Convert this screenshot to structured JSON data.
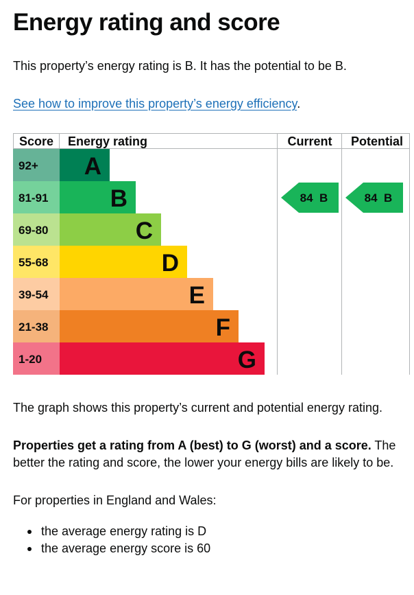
{
  "title": "Energy rating and score",
  "intro": "This property’s energy rating is B. It has the potential to be B.",
  "improve_link": {
    "text": "See how to improve this property’s energy efficiency",
    "suffix": "."
  },
  "chart_data": {
    "type": "bar",
    "headers": {
      "score": "Score",
      "rating": "Energy rating",
      "current": "Current",
      "potential": "Potential"
    },
    "bands": [
      {
        "score": "92+",
        "letter": "A",
        "color": "#008054",
        "score_color": "#66b397",
        "score_text": "#0b0c0c",
        "letter_text": "#0b0c0c"
      },
      {
        "score": "81-91",
        "letter": "B",
        "color": "#19b459",
        "score_color": "#75d29b",
        "score_text": "#0b0c0c",
        "letter_text": "#0b0c0c"
      },
      {
        "score": "69-80",
        "letter": "C",
        "color": "#8dce46",
        "score_color": "#bbe290",
        "score_text": "#0b0c0c",
        "letter_text": "#0b0c0c"
      },
      {
        "score": "55-68",
        "letter": "D",
        "color": "#ffd500",
        "score_color": "#ffe666",
        "score_text": "#0b0c0c",
        "letter_text": "#0b0c0c"
      },
      {
        "score": "39-54",
        "letter": "E",
        "color": "#fcaa65",
        "score_color": "#fdcca3",
        "score_text": "#0b0c0c",
        "letter_text": "#0b0c0c"
      },
      {
        "score": "21-38",
        "letter": "F",
        "color": "#ef8023",
        "score_color": "#f5b37b",
        "score_text": "#0b0c0c",
        "letter_text": "#0b0c0c"
      },
      {
        "score": "1-20",
        "letter": "G",
        "color": "#e9153b",
        "score_color": "#f27389",
        "score_text": "#0b0c0c",
        "letter_text": "#0b0c0c"
      }
    ],
    "current": {
      "score": 84,
      "letter": "B",
      "label": "84  B",
      "color": "#19b459"
    },
    "potential": {
      "score": 84,
      "letter": "B",
      "label": "84  B",
      "color": "#19b459"
    }
  },
  "graph_caption": "The graph shows this property’s current and potential energy rating.",
  "rating_info": {
    "bold": "Properties get a rating from A (best) to G (worst) and a score.",
    "rest": " The better the rating and score, the lower your energy bills are likely to be."
  },
  "england_wales_label": "For properties in England and Wales:",
  "averages": [
    "the average energy rating is D",
    "the average energy score is 60"
  ]
}
